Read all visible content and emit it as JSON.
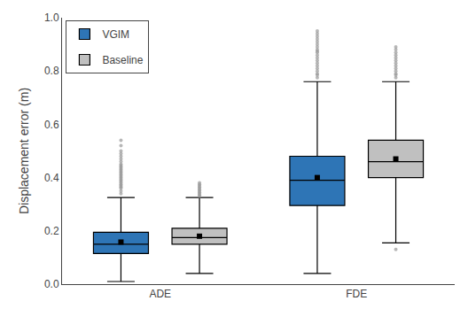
{
  "chart_data": {
    "type": "box",
    "ylabel": "Displacement error (m)",
    "categories": [
      "ADE",
      "FDE"
    ],
    "series": [
      {
        "name": "VGIM",
        "color": "#2e75b6",
        "values": [
          {
            "whislo": 0.01,
            "q1": 0.115,
            "med": 0.15,
            "mean": 0.158,
            "q3": 0.195,
            "whishi": 0.325,
            "fliers": [
              0.34,
              0.35,
              0.36,
              0.365,
              0.37,
              0.375,
              0.38,
              0.385,
              0.39,
              0.395,
              0.4,
              0.405,
              0.41,
              0.415,
              0.42,
              0.425,
              0.43,
              0.435,
              0.44,
              0.445,
              0.45,
              0.46,
              0.47,
              0.48,
              0.49,
              0.5,
              0.52,
              0.54
            ]
          },
          {
            "whislo": 0.04,
            "q1": 0.295,
            "med": 0.39,
            "mean": 0.4,
            "q3": 0.48,
            "whishi": 0.76,
            "fliers": [
              0.775,
              0.785,
              0.79,
              0.8,
              0.81,
              0.82,
              0.83,
              0.84,
              0.85,
              0.86,
              0.87,
              0.875,
              0.88,
              0.89,
              0.9,
              0.91,
              0.92,
              0.93,
              0.94,
              0.95
            ]
          }
        ]
      },
      {
        "name": "Baseline",
        "color": "#c0c0c0",
        "values": [
          {
            "whislo": 0.04,
            "q1": 0.15,
            "med": 0.175,
            "mean": 0.18,
            "q3": 0.21,
            "whishi": 0.325,
            "fliers": [
              0.33,
              0.335,
              0.34,
              0.345,
              0.35,
              0.355,
              0.36,
              0.365,
              0.37,
              0.375,
              0.38
            ]
          },
          {
            "whislo": 0.155,
            "q1": 0.4,
            "med": 0.46,
            "mean": 0.47,
            "q3": 0.54,
            "whishi": 0.76,
            "fliers": [
              0.13,
              0.775,
              0.785,
              0.79,
              0.8,
              0.81,
              0.82,
              0.83,
              0.84,
              0.85,
              0.86,
              0.87,
              0.88,
              0.89
            ]
          }
        ]
      }
    ],
    "ylim": [
      0,
      1.0
    ],
    "yticks": [
      {
        "value": 0.0,
        "label": "0.0"
      },
      0.2,
      0.4,
      0.6,
      0.8,
      {
        "value": 1.0,
        "label": "1.0"
      }
    ],
    "grid": false,
    "legend": "upper left"
  }
}
